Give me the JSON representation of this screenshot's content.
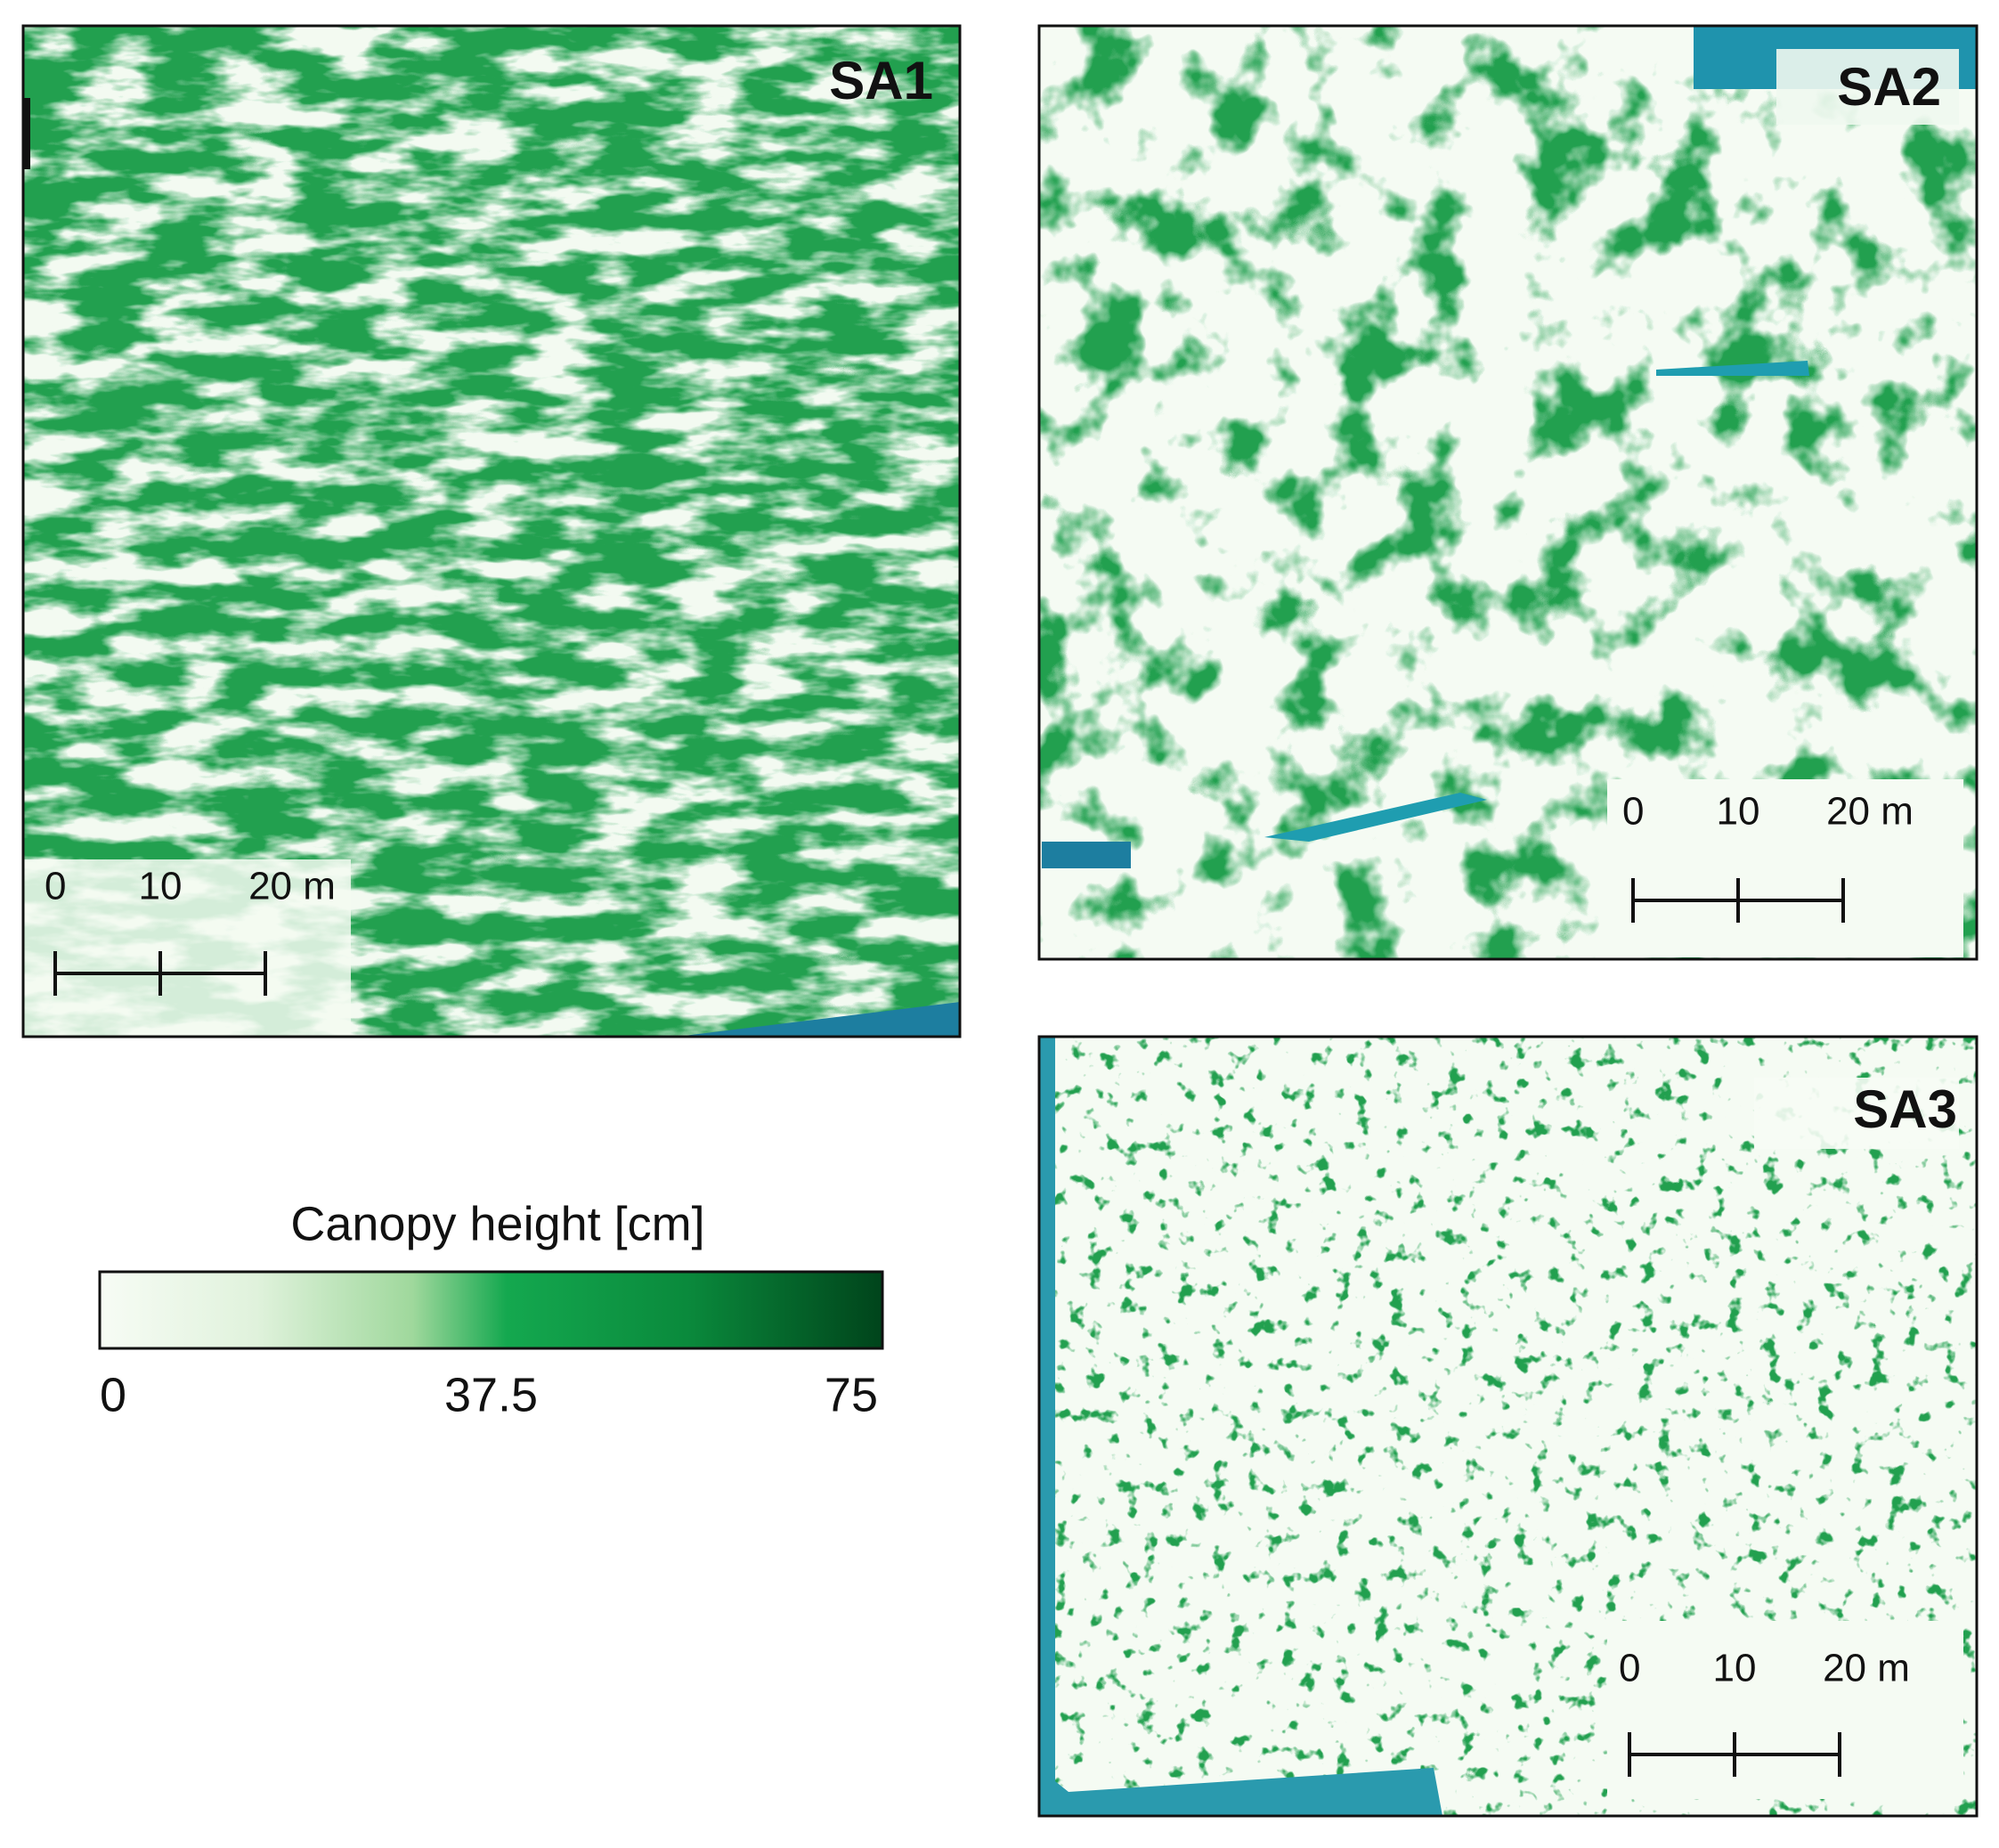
{
  "panels": [
    {
      "label": "SA1",
      "scale_bar": {
        "ticks": [
          0,
          10,
          {
            "value": 20,
            "label": "20 m"
          }
        ]
      }
    },
    {
      "label": "SA2",
      "scale_bar": {
        "ticks": [
          0,
          10,
          {
            "value": 20,
            "label": "20 m"
          }
        ]
      }
    },
    {
      "label": "SA3",
      "scale_bar": {
        "ticks": [
          0,
          10,
          {
            "value": 20,
            "label": "20 m"
          }
        ]
      }
    }
  ],
  "legend": {
    "title": "Canopy height [cm]",
    "range": [
      0,
      75
    ],
    "ticks": [
      0,
      37.5,
      75
    ]
  }
}
